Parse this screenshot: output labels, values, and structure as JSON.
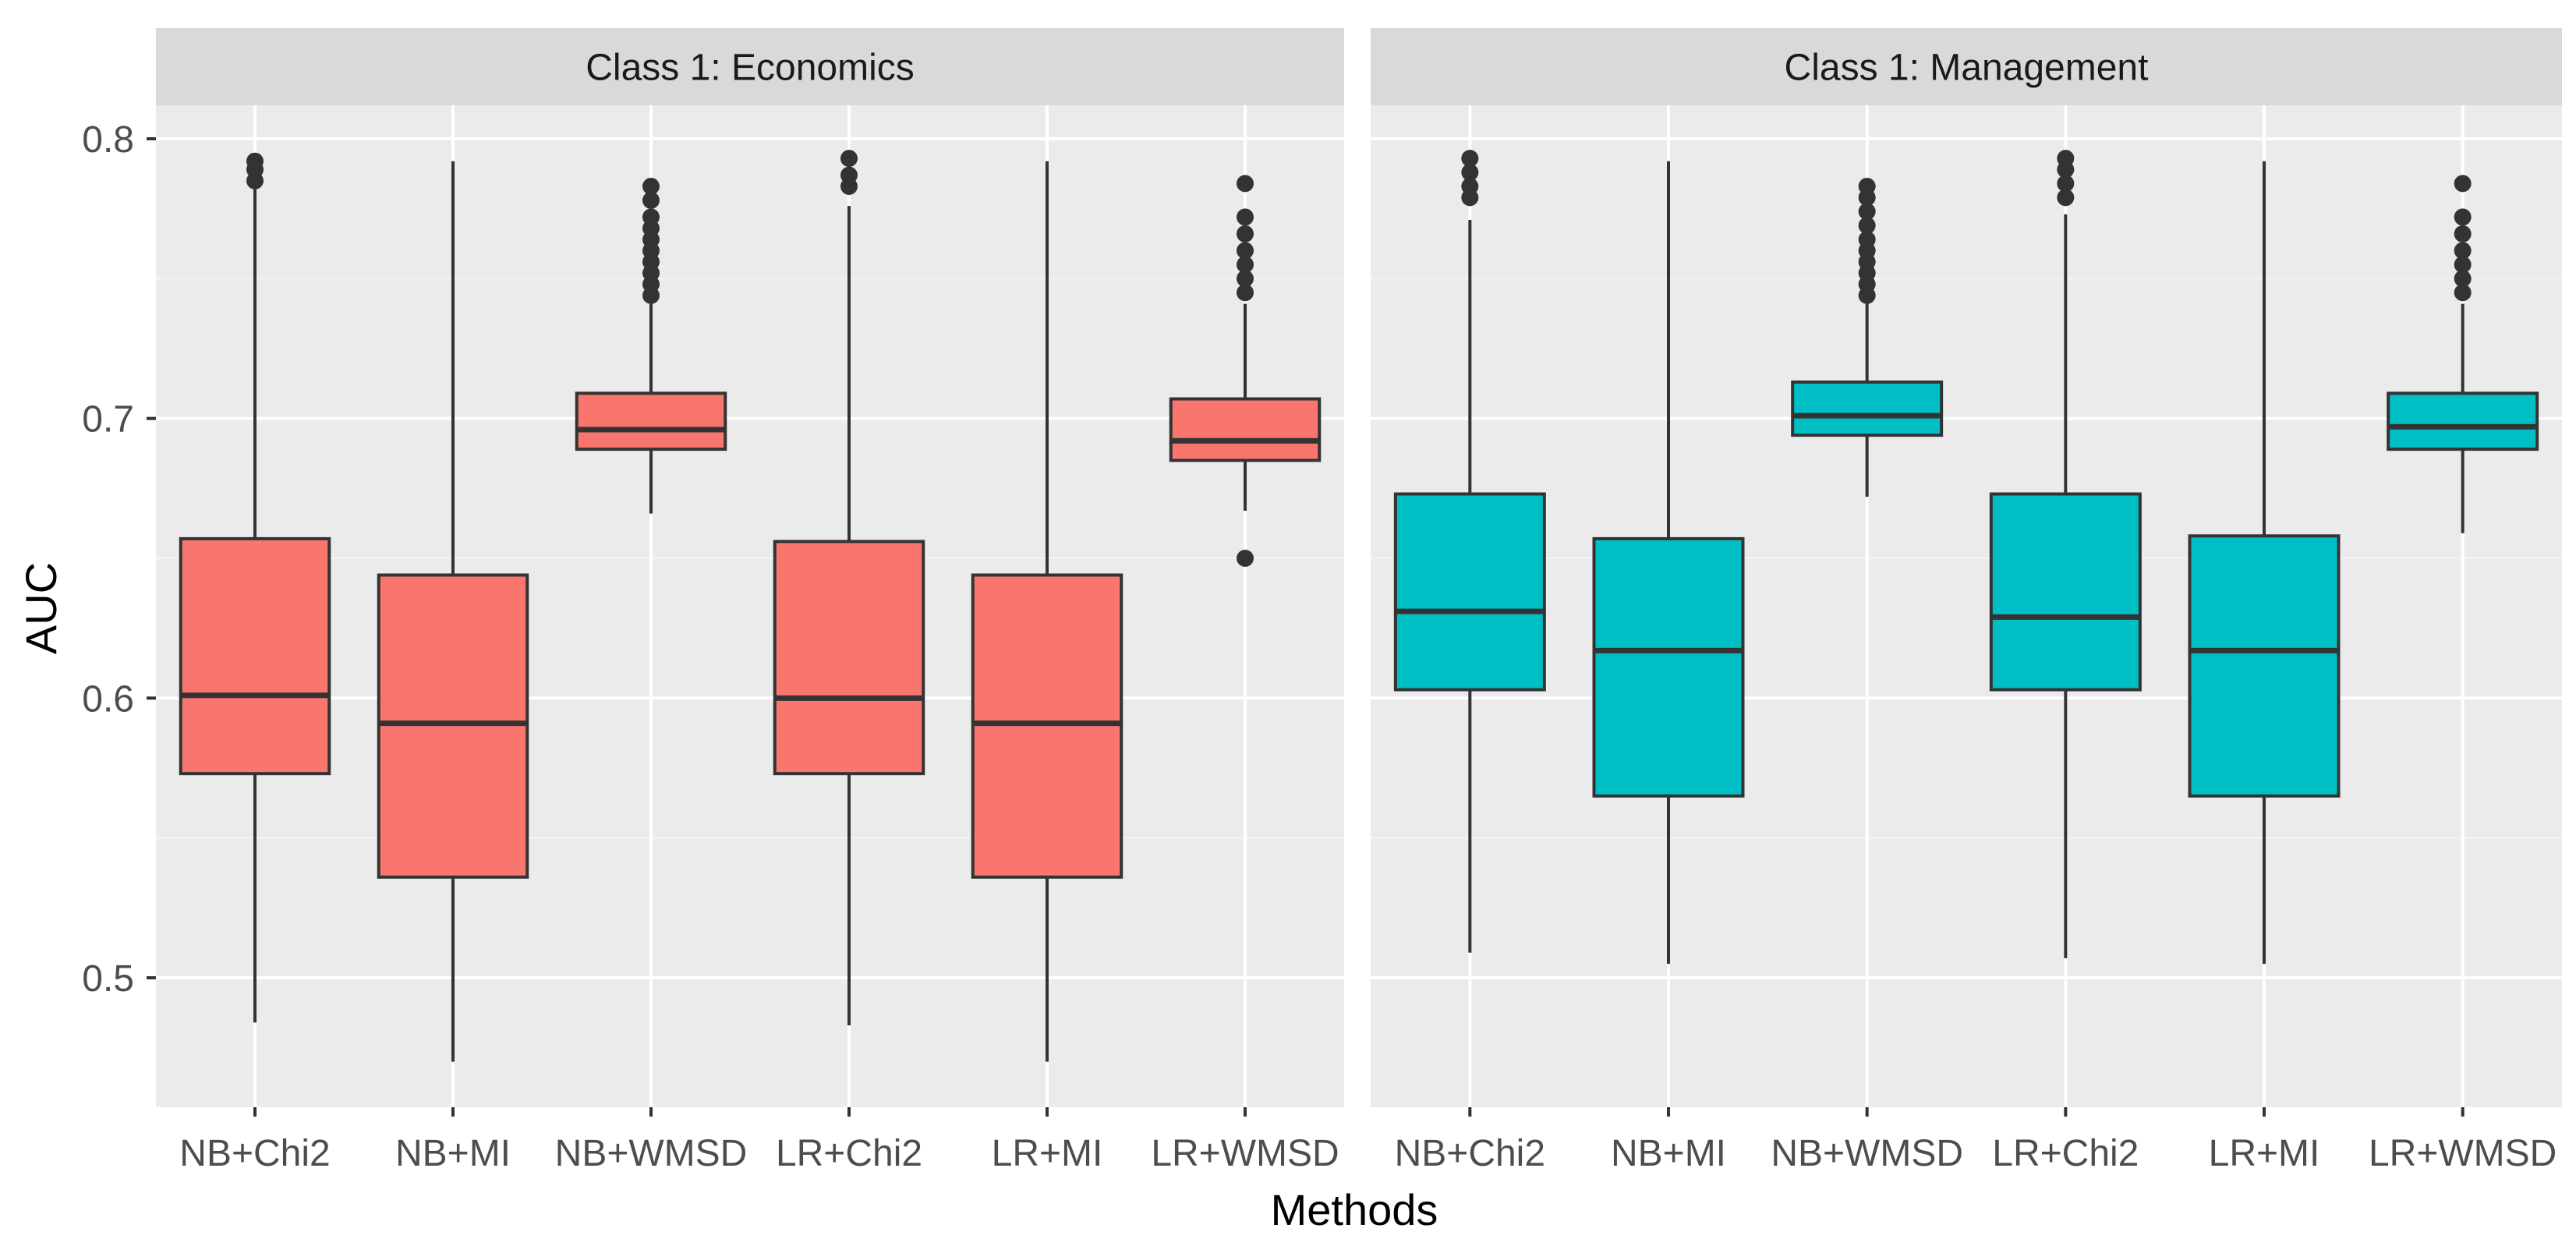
{
  "chart_data": {
    "type": "boxplot",
    "xlabel": "Methods",
    "ylabel": "AUC",
    "ylim": [
      0.45,
      0.81
    ],
    "yticks": [
      "0.5",
      "0.6",
      "0.7",
      "0.8"
    ],
    "ytick_values": [
      0.5,
      0.6,
      0.7,
      0.8
    ],
    "categories": [
      "NB+Chi2",
      "NB+MI",
      "NB+WMSD",
      "LR+Chi2",
      "LR+MI",
      "LR+WMSD"
    ],
    "panels": [
      {
        "title": "Class 1: Economics",
        "fill": "#F8766D",
        "boxes": [
          {
            "category": "NB+Chi2",
            "whisker_low": 0.484,
            "q1": 0.573,
            "median": 0.601,
            "q3": 0.657,
            "whisker_high": 0.782,
            "outliers": [
              0.785,
              0.789,
              0.792
            ]
          },
          {
            "category": "NB+MI",
            "whisker_low": 0.47,
            "q1": 0.536,
            "median": 0.591,
            "q3": 0.644,
            "whisker_high": 0.792,
            "outliers": []
          },
          {
            "category": "NB+WMSD",
            "whisker_low": 0.666,
            "q1": 0.689,
            "median": 0.696,
            "q3": 0.709,
            "whisker_high": 0.741,
            "outliers": [
              0.744,
              0.748,
              0.752,
              0.756,
              0.76,
              0.764,
              0.768,
              0.772,
              0.778,
              0.783
            ]
          },
          {
            "category": "LR+Chi2",
            "whisker_low": 0.483,
            "q1": 0.573,
            "median": 0.6,
            "q3": 0.656,
            "whisker_high": 0.776,
            "outliers": [
              0.783,
              0.787,
              0.793
            ]
          },
          {
            "category": "LR+MI",
            "whisker_low": 0.47,
            "q1": 0.536,
            "median": 0.591,
            "q3": 0.644,
            "whisker_high": 0.792,
            "outliers": []
          },
          {
            "category": "LR+WMSD",
            "whisker_low": 0.667,
            "q1": 0.685,
            "median": 0.692,
            "q3": 0.707,
            "whisker_high": 0.741,
            "outliers": [
              0.65,
              0.745,
              0.75,
              0.755,
              0.76,
              0.766,
              0.772,
              0.784
            ]
          }
        ]
      },
      {
        "title": "Class 1: Management",
        "fill": "#00BFC4",
        "boxes": [
          {
            "category": "NB+Chi2",
            "whisker_low": 0.509,
            "q1": 0.603,
            "median": 0.631,
            "q3": 0.673,
            "whisker_high": 0.771,
            "outliers": [
              0.779,
              0.783,
              0.788,
              0.793
            ]
          },
          {
            "category": "NB+MI",
            "whisker_low": 0.505,
            "q1": 0.565,
            "median": 0.617,
            "q3": 0.657,
            "whisker_high": 0.792,
            "outliers": []
          },
          {
            "category": "NB+WMSD",
            "whisker_low": 0.672,
            "q1": 0.694,
            "median": 0.701,
            "q3": 0.713,
            "whisker_high": 0.741,
            "outliers": [
              0.744,
              0.748,
              0.752,
              0.756,
              0.76,
              0.764,
              0.769,
              0.774,
              0.779,
              0.783
            ]
          },
          {
            "category": "LR+Chi2",
            "whisker_low": 0.507,
            "q1": 0.603,
            "median": 0.629,
            "q3": 0.673,
            "whisker_high": 0.773,
            "outliers": [
              0.779,
              0.784,
              0.789,
              0.793
            ]
          },
          {
            "category": "LR+MI",
            "whisker_low": 0.505,
            "q1": 0.565,
            "median": 0.617,
            "q3": 0.658,
            "whisker_high": 0.792,
            "outliers": []
          },
          {
            "category": "LR+WMSD",
            "whisker_low": 0.659,
            "q1": 0.689,
            "median": 0.697,
            "q3": 0.709,
            "whisker_high": 0.741,
            "outliers": [
              0.745,
              0.75,
              0.755,
              0.76,
              0.766,
              0.772,
              0.784
            ]
          }
        ]
      }
    ]
  }
}
